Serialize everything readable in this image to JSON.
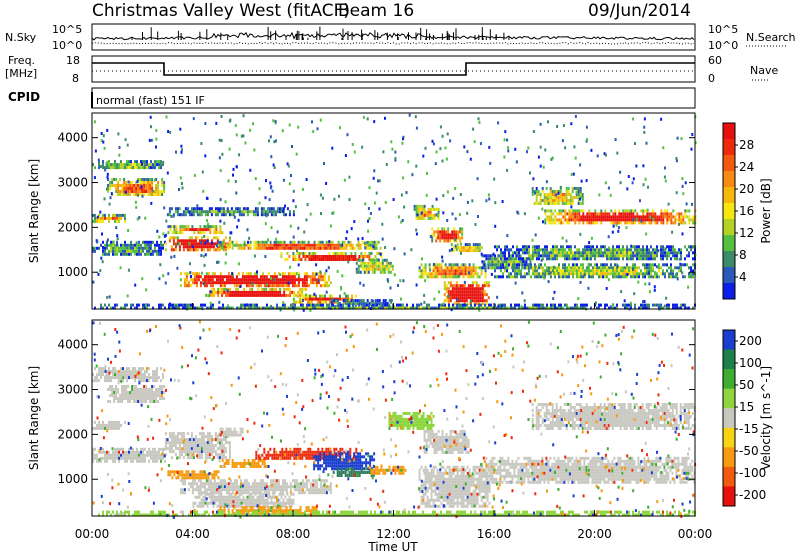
{
  "header": {
    "site": "Christmas Valley West (fitACF)",
    "beam": "Beam 16",
    "date": "09/Jun/2014"
  },
  "noise_panel": {
    "left_label": "N.Sky",
    "right_label": "N.Search",
    "left_ticks": [
      "10^5",
      "10^0"
    ],
    "right_ticks": [
      "10^5",
      "10^0"
    ]
  },
  "freq_panel": {
    "left_label_1": "Freq.",
    "left_label_2": "[MHz]",
    "right_label": "Nave",
    "left_ticks": [
      "18",
      "8"
    ],
    "right_ticks": [
      "60",
      "0"
    ]
  },
  "cpid_panel": {
    "label": "CPID",
    "text": "normal (fast) 151 IF"
  },
  "chart_data": [
    {
      "type": "heatmap",
      "name": "power",
      "xlabel": "",
      "ylabel": "Slant Range [km]",
      "xlim": [
        0,
        24
      ],
      "ylim": [
        180,
        4550
      ],
      "y_ticks": [
        "1000",
        "2000",
        "3000",
        "4000"
      ],
      "colorbar": {
        "label": "Power [dB]",
        "ticks": [
          "4",
          "8",
          "12",
          "16",
          "20",
          "24",
          "28"
        ],
        "colors": [
          "#0b1ee6",
          "#2a59b7",
          "#3b8b6a",
          "#55c040",
          "#b4d226",
          "#f6e713",
          "#f7b80c",
          "#f68a12",
          "#f25a0f",
          "#ee2a0d",
          "#e8100c"
        ]
      },
      "bands": [
        {
          "t": [
            0.0,
            2.8
          ],
          "r": [
            3300,
            3500
          ],
          "level": 0.25
        },
        {
          "t": [
            0.6,
            2.9
          ],
          "r": [
            2700,
            3100
          ],
          "level": 0.55
        },
        {
          "t": [
            0.0,
            1.3
          ],
          "r": [
            2150,
            2300
          ],
          "level": 0.5
        },
        {
          "t": [
            0.0,
            2.9
          ],
          "r": [
            1400,
            1700
          ],
          "level": 0.2
        },
        {
          "t": [
            2.9,
            8.0
          ],
          "r": [
            2300,
            2450
          ],
          "level": 0.2
        },
        {
          "t": [
            3.0,
            5.3
          ],
          "r": [
            1900,
            2050
          ],
          "level": 0.6
        },
        {
          "t": [
            2.9,
            5.5
          ],
          "r": [
            1500,
            1800
          ],
          "level": 0.9
        },
        {
          "t": [
            5.0,
            11.5
          ],
          "r": [
            1500,
            1700
          ],
          "level": 0.55
        },
        {
          "t": [
            7.5,
            11.5
          ],
          "r": [
            1250,
            1450
          ],
          "level": 0.7
        },
        {
          "t": [
            3.5,
            9.5
          ],
          "r": [
            700,
            1000
          ],
          "level": 0.9
        },
        {
          "t": [
            4.5,
            8.5
          ],
          "r": [
            450,
            650
          ],
          "level": 0.8
        },
        {
          "t": [
            8.0,
            10.5
          ],
          "r": [
            350,
            500
          ],
          "level": 0.7
        },
        {
          "t": [
            10.5,
            12.0
          ],
          "r": [
            1000,
            1300
          ],
          "level": 0.35
        },
        {
          "t": [
            9.5,
            12.0
          ],
          "r": [
            250,
            400
          ],
          "level": 0.15
        },
        {
          "t": [
            12.8,
            13.8
          ],
          "r": [
            2200,
            2500
          ],
          "level": 0.5
        },
        {
          "t": [
            13.5,
            14.8
          ],
          "r": [
            1700,
            2000
          ],
          "level": 0.75
        },
        {
          "t": [
            14.2,
            15.5
          ],
          "r": [
            1450,
            1650
          ],
          "level": 0.45
        },
        {
          "t": [
            13.0,
            15.7
          ],
          "r": [
            900,
            1200
          ],
          "level": 0.55
        },
        {
          "t": [
            14.0,
            15.8
          ],
          "r": [
            300,
            800
          ],
          "level": 0.92
        },
        {
          "t": [
            15.5,
            17.5
          ],
          "r": [
            1100,
            1400
          ],
          "level": 0.25
        },
        {
          "t": [
            16.0,
            24.0
          ],
          "r": [
            900,
            1200
          ],
          "level": 0.3
        },
        {
          "t": [
            16.0,
            24.0
          ],
          "r": [
            1300,
            1600
          ],
          "level": 0.22
        },
        {
          "t": [
            18.0,
            24.0
          ],
          "r": [
            2100,
            2400
          ],
          "level": 0.75
        },
        {
          "t": [
            17.5,
            19.5
          ],
          "r": [
            2500,
            2900
          ],
          "level": 0.4
        },
        {
          "t": [
            0.0,
            24.0
          ],
          "r": [
            180,
            300
          ],
          "level": 0.2
        }
      ]
    },
    {
      "type": "heatmap",
      "name": "velocity",
      "xlabel": "Time UT",
      "ylabel": "Slant Range [km]",
      "xlim": [
        0,
        24
      ],
      "ylim": [
        180,
        4550
      ],
      "x_ticks": [
        "00:00",
        "04:00",
        "08:00",
        "12:00",
        "16:00",
        "20:00",
        "00:00"
      ],
      "y_ticks": [
        "1000",
        "2000",
        "3000",
        "4000"
      ],
      "colorbar": {
        "label": "Velocity [m s^-1]",
        "ticks": [
          "200",
          "100",
          "50",
          "15",
          "-15",
          "-50",
          "-100",
          "-200"
        ],
        "colors": [
          "#1a3fcf",
          "#1d7f4a",
          "#3fae30",
          "#8ed63e",
          "#c8c8c0",
          "#f6d313",
          "#f69a10",
          "#f25a0f",
          "#e8100c"
        ]
      },
      "bands": [
        {
          "t": [
            0.0,
            2.8
          ],
          "r": [
            3200,
            3500
          ],
          "v": "gray"
        },
        {
          "t": [
            0.6,
            2.9
          ],
          "r": [
            2700,
            3100
          ],
          "v": "gray"
        },
        {
          "t": [
            0.0,
            1.3
          ],
          "r": [
            2100,
            2300
          ],
          "v": "gray"
        },
        {
          "t": [
            0.0,
            2.9
          ],
          "r": [
            1400,
            1700
          ],
          "v": "gray"
        },
        {
          "t": [
            2.9,
            5.5
          ],
          "r": [
            1500,
            2050
          ],
          "v": "gray"
        },
        {
          "t": [
            5.0,
            6.0
          ],
          "r": [
            1950,
            2150
          ],
          "v": "gray"
        },
        {
          "t": [
            5.0,
            7.0
          ],
          "r": [
            1300,
            1450
          ],
          "v": "orange"
        },
        {
          "t": [
            6.5,
            10.5
          ],
          "r": [
            1450,
            1700
          ],
          "v": "red"
        },
        {
          "t": [
            8.8,
            11.2
          ],
          "r": [
            1200,
            1600
          ],
          "v": "blue"
        },
        {
          "t": [
            9.5,
            11.2
          ],
          "r": [
            1100,
            1250
          ],
          "v": "darkgreen"
        },
        {
          "t": [
            3.5,
            9.5
          ],
          "r": [
            700,
            1000
          ],
          "v": "gray"
        },
        {
          "t": [
            4.0,
            8.0
          ],
          "r": [
            400,
            700
          ],
          "v": "gray"
        },
        {
          "t": [
            3.0,
            5.0
          ],
          "r": [
            1000,
            1200
          ],
          "v": "orange"
        },
        {
          "t": [
            5.0,
            9.0
          ],
          "r": [
            250,
            400
          ],
          "v": "orange"
        },
        {
          "t": [
            11.0,
            12.5
          ],
          "r": [
            1150,
            1300
          ],
          "v": "orange"
        },
        {
          "t": [
            11.8,
            13.6
          ],
          "r": [
            2100,
            2500
          ],
          "v": "green"
        },
        {
          "t": [
            13.2,
            15.0
          ],
          "r": [
            1600,
            2100
          ],
          "v": "gray"
        },
        {
          "t": [
            13.0,
            15.8
          ],
          "r": [
            400,
            1300
          ],
          "v": "gray"
        },
        {
          "t": [
            15.5,
            24.0
          ],
          "r": [
            900,
            1500
          ],
          "v": "gray"
        },
        {
          "t": [
            17.5,
            24.0
          ],
          "r": [
            2100,
            2700
          ],
          "v": "gray"
        },
        {
          "t": [
            0.0,
            24.0
          ],
          "r": [
            180,
            300
          ],
          "v": "green"
        }
      ]
    }
  ]
}
